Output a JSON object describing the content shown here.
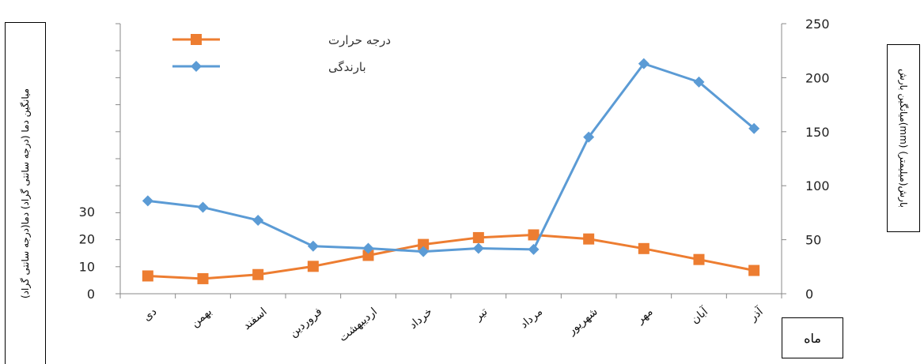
{
  "chart_data": {
    "type": "line",
    "categories": [
      "دی",
      "بهمن",
      "اسفند",
      "فروردین",
      "اردیبهشت",
      "خرداد",
      "تیر",
      "مرداد",
      "شهریور",
      "مهر",
      "آبان",
      "آذر"
    ],
    "series": [
      {
        "name": "درجه حرارت",
        "axis": "left",
        "color": "#ED7D31",
        "marker": "square",
        "values": [
          6.5,
          5.5,
          7.0,
          10.0,
          14.0,
          18.0,
          20.5,
          21.5,
          20.0,
          16.5,
          12.5,
          8.5
        ]
      },
      {
        "name": "بارندگی",
        "axis": "right",
        "color": "#5B9BD5",
        "marker": "diamond",
        "values": [
          86,
          80,
          68,
          44,
          42,
          39,
          42,
          41,
          145,
          213,
          196,
          153
        ]
      }
    ],
    "y_left": {
      "label": "میانگین دما (درجه سانتی گراد) دما(درجه سانتی گراد)",
      "ticks": [
        0,
        10,
        20,
        30
      ],
      "range": [
        0,
        30
      ]
    },
    "y_right": {
      "label": "میانگین بارش(mm) بارش(میلیمتر)",
      "ticks": [
        0,
        50,
        100,
        150,
        200,
        250
      ],
      "range": [
        0,
        250
      ]
    },
    "x_label": "ماه",
    "legend_position": "top-left",
    "grid": false
  }
}
